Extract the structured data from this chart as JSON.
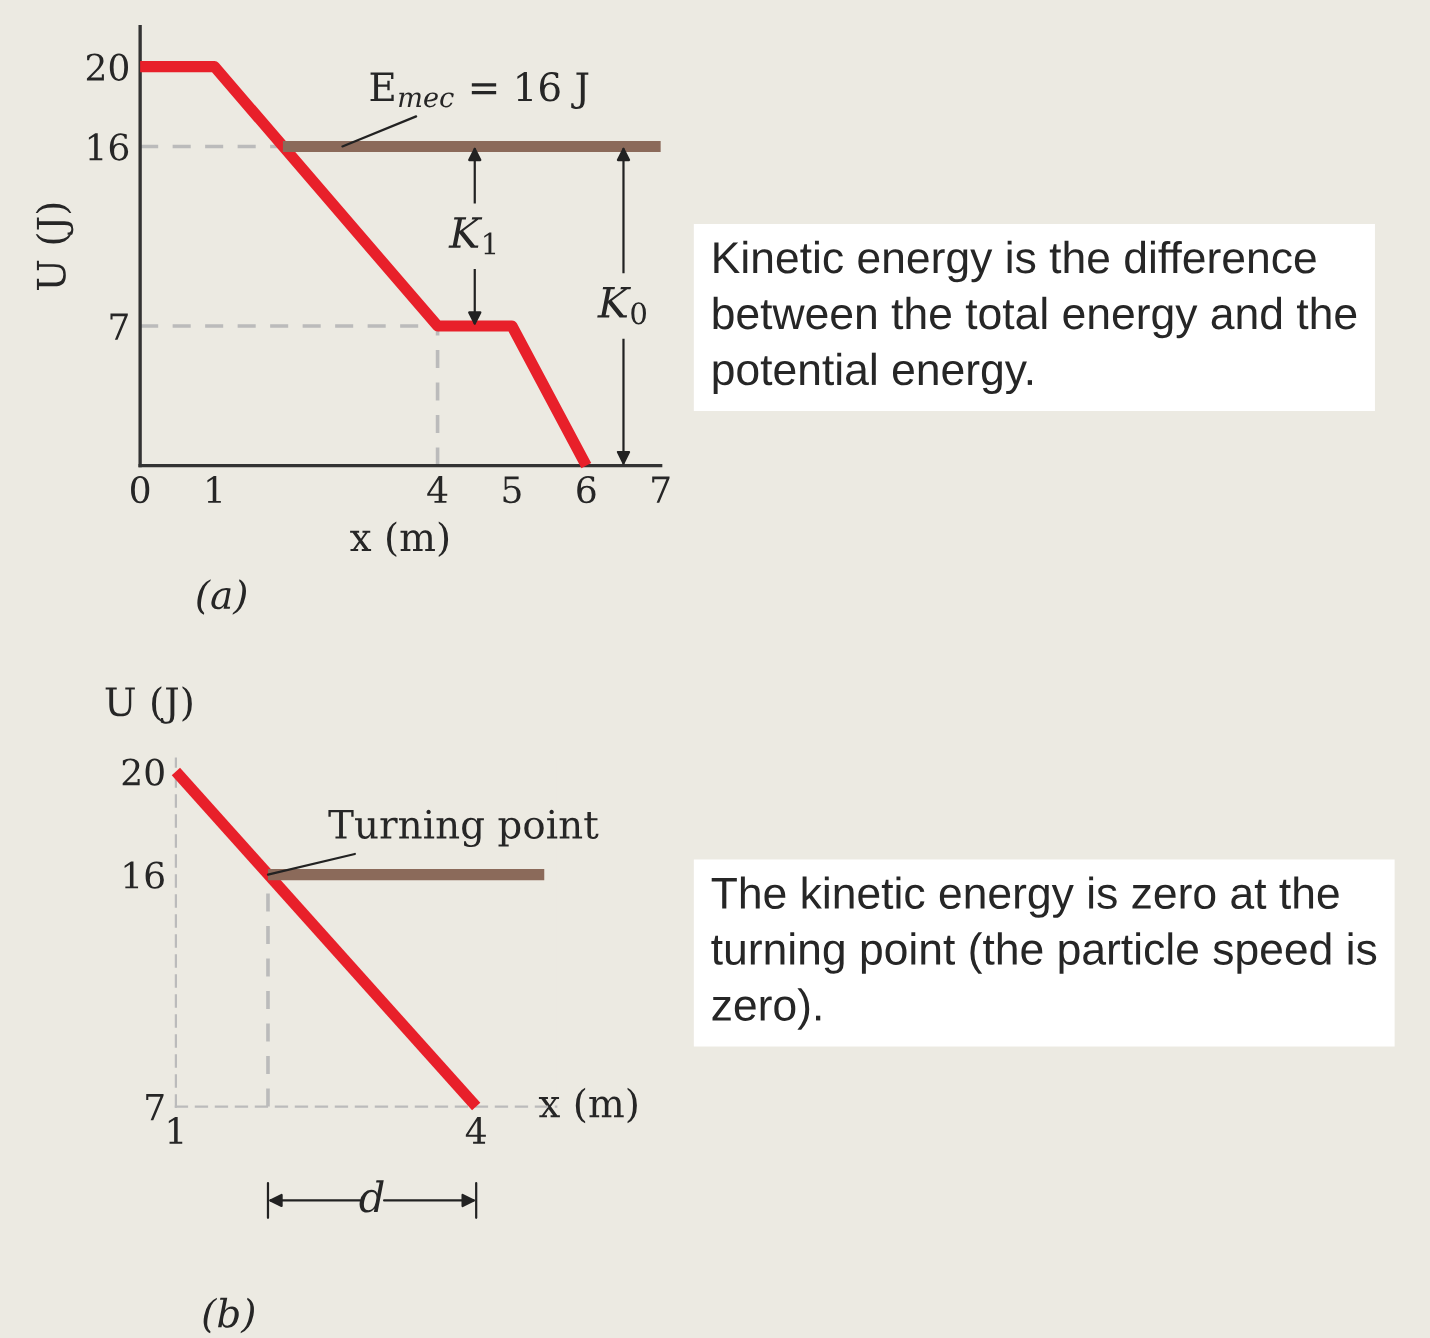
{
  "chart_data": [
    {
      "type": "line",
      "xlabel": "x (m)",
      "ylabel": "U (J)",
      "xlim": [
        0,
        7
      ],
      "ylim": [
        0,
        22
      ],
      "xticks": [
        0,
        1,
        4,
        5,
        6,
        7
      ],
      "yticks": [
        7,
        16,
        20
      ],
      "grid": false,
      "legend": false,
      "series": [
        {
          "color": "#e8202a",
          "x": [
            0,
            1,
            4,
            5,
            6
          ],
          "values": [
            20,
            20,
            7,
            7,
            0
          ]
        },
        {
          "name": "E$_{mec}$ = 16 J",
          "color": "#8b6a5a",
          "x": [
            1.92,
            7
          ],
          "values": [
            16,
            16
          ]
        },
        {
          "color": "#bbbbbb",
          "line_style": "dashed",
          "x": [
            0,
            1.92
          ],
          "values": [
            16,
            16
          ]
        },
        {
          "color": "#bbbbbb",
          "line_style": "dashed",
          "x": [
            0,
            4
          ],
          "values": [
            7,
            7
          ]
        },
        {
          "color": "#bbbbbb",
          "line_style": "dashed",
          "x": [
            4,
            4
          ],
          "values": [
            0,
            7
          ]
        }
      ],
      "annotations": [
        {
          "text": "K$_{1}$",
          "x": 4.5,
          "y": 11.5
        },
        {
          "text": "K$_{0}$",
          "x": 6.5,
          "y": 8
        },
        "(a)",
        "Kinetic energy is the difference between the total energy and the potential energy."
      ]
    },
    {
      "type": "line",
      "xlabel": "x (m)",
      "ylabel": "U (J)",
      "xlim": [
        1,
        4.8
      ],
      "ylim": [
        7,
        20.5
      ],
      "xticks": [
        1,
        4
      ],
      "yticks": [
        7,
        16,
        20
      ],
      "grid": false,
      "legend": false,
      "series": [
        {
          "color": "#e8202a",
          "x": [
            1,
            4
          ],
          "values": [
            20,
            7
          ]
        },
        {
          "color": "#8b6a5a",
          "x": [
            1.92,
            4.68
          ],
          "values": [
            16,
            16
          ]
        },
        {
          "color": "#bbbbbb",
          "line_style": "dashed",
          "x": [
            1.92,
            1.92
          ],
          "values": [
            7,
            16
          ]
        }
      ],
      "annotations": [
        {
          "text": "Turning point",
          "x": 1.92,
          "y": 16
        },
        "d",
        "(b)",
        "The kinetic energy is zero at the turning point (the particle speed is zero)."
      ]
    }
  ]
}
